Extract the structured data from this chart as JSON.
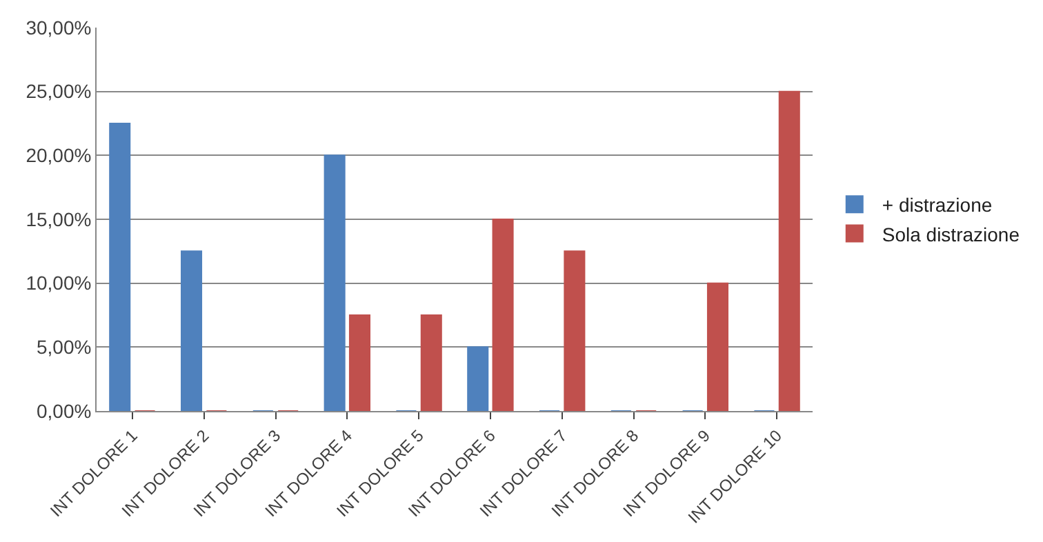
{
  "chart_data": {
    "type": "bar",
    "categories": [
      "INT DOLORE 1",
      "INT DOLORE 2",
      "INT DOLORE 3",
      "INT DOLORE 4",
      "INT DOLORE 5",
      "INT DOLORE 6",
      "INT DOLORE 7",
      "INT DOLORE 8",
      "INT DOLORE 9",
      "INT DOLORE 10"
    ],
    "series": [
      {
        "name": "+ distrazione",
        "color": "#4f81bd",
        "values": [
          22.5,
          12.5,
          0,
          20,
          0,
          5,
          0,
          0,
          0,
          0
        ]
      },
      {
        "name": "Sola distrazione",
        "color": "#c0504d",
        "values": [
          0,
          0,
          0,
          7.5,
          7.5,
          15,
          12.5,
          0,
          10,
          25
        ]
      }
    ],
    "ylim": [
      0,
      30
    ],
    "yticks": [
      {
        "value": 0,
        "label": "0,00%"
      },
      {
        "value": 5,
        "label": "5,00%"
      },
      {
        "value": 10,
        "label": "10,00%"
      },
      {
        "value": 15,
        "label": "15,00%"
      },
      {
        "value": 20,
        "label": "20,00%"
      },
      {
        "value": 25,
        "label": "25,00%"
      },
      {
        "value": 30,
        "label": "30,00%"
      }
    ],
    "grid": "y",
    "legend": "right"
  }
}
